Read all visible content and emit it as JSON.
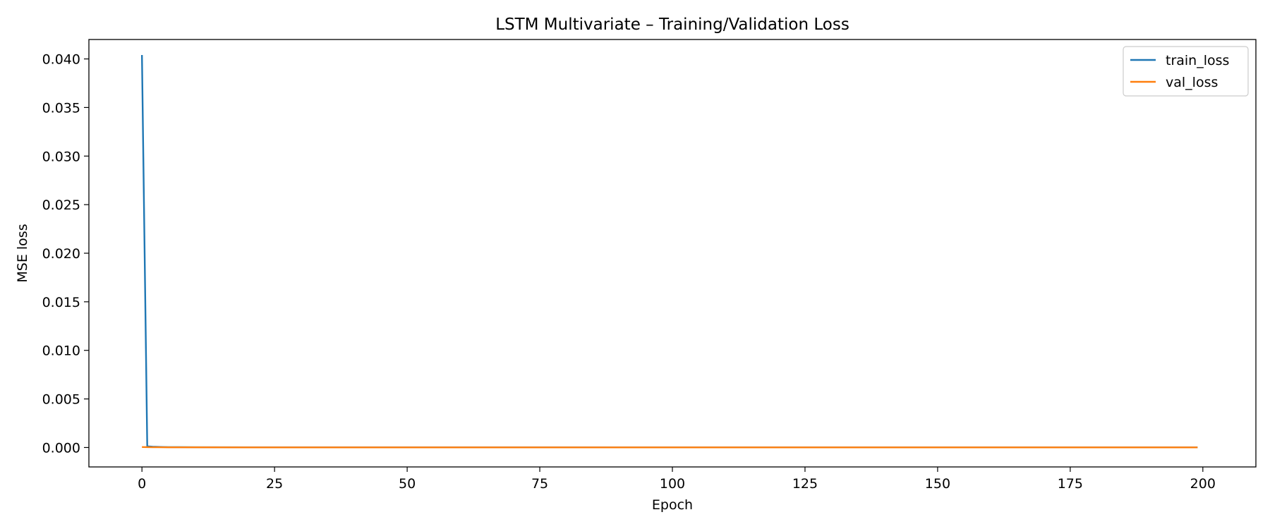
{
  "chart_data": {
    "type": "line",
    "title": "LSTM Multivariate – Training/Validation Loss",
    "xlabel": "Epoch",
    "ylabel": "MSE loss",
    "xlim": [
      -10,
      210
    ],
    "ylim": [
      -0.002,
      0.042
    ],
    "xticks": [
      0,
      25,
      50,
      75,
      100,
      125,
      150,
      175,
      200
    ],
    "yticks": [
      0.0,
      0.005,
      0.01,
      0.015,
      0.02,
      0.025,
      0.03,
      0.035,
      0.04
    ],
    "ytick_labels": [
      "0.000",
      "0.005",
      "0.010",
      "0.015",
      "0.020",
      "0.025",
      "0.030",
      "0.035",
      "0.040"
    ],
    "xtick_labels": [
      "0",
      "25",
      "50",
      "75",
      "100",
      "125",
      "150",
      "175",
      "200"
    ],
    "grid": false,
    "legend_position": "top-right",
    "series": [
      {
        "name": "train_loss",
        "color": "#1f77b4",
        "x": [
          0,
          1,
          2,
          3,
          4,
          5,
          10,
          20,
          50,
          100,
          150,
          199
        ],
        "y": [
          0.0404,
          0.00012,
          8e-05,
          6e-05,
          5e-05,
          4e-05,
          3e-05,
          2e-05,
          2e-05,
          1e-05,
          1e-05,
          1e-05
        ]
      },
      {
        "name": "val_loss",
        "color": "#ff7f0e",
        "x": [
          0,
          1,
          2,
          3,
          5,
          10,
          20,
          50,
          100,
          150,
          199
        ],
        "y": [
          5e-05,
          4e-05,
          3e-05,
          3e-05,
          2e-05,
          2e-05,
          1e-05,
          1e-05,
          1e-05,
          1e-05,
          1e-05
        ]
      }
    ]
  }
}
